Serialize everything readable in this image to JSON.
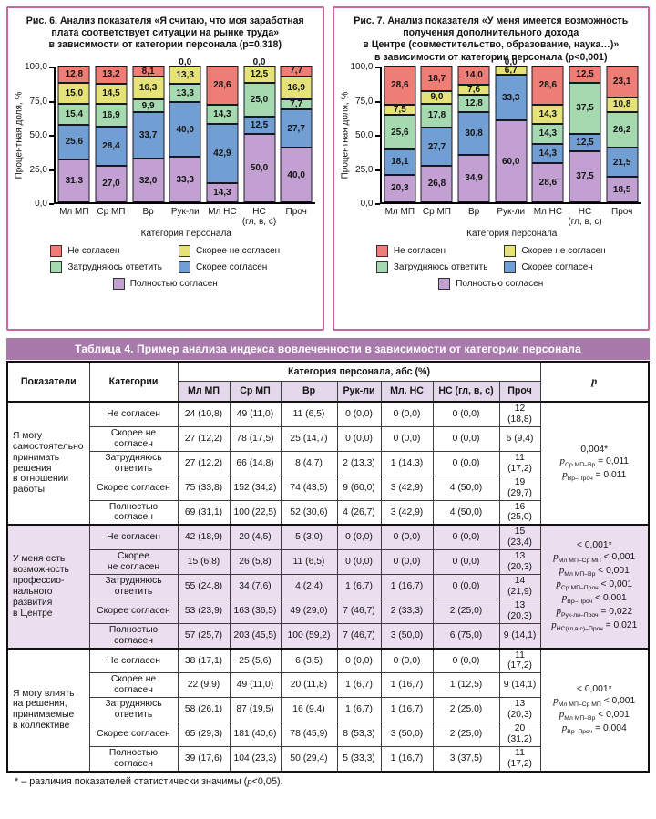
{
  "figures": [
    {
      "title": "Рис. 6. Анализ показателя «Я считаю, что моя заработная\nплата соответствует ситуации на рынке труда»\nв зависимости от категории персонала (p=0,318)",
      "chart_data": {
        "type": "bar",
        "subtype": "stacked-percent",
        "ylabel": "Процентная доля, %",
        "xlabel": "Категория персонала",
        "ylim": [
          0,
          100
        ],
        "yticks": [
          100,
          75,
          50,
          25,
          0
        ],
        "categories": [
          "Мл МП",
          "Ср МП",
          "Вр",
          "Рук-ли",
          "Мл НС",
          "НС\n(гл, в, с)",
          "Проч"
        ],
        "series": [
          {
            "name": "Не согласен",
            "color": "#ee7d75",
            "values": [
              12.8,
              13.2,
              8.1,
              0.0,
              28.6,
              0.0,
              7.7
            ]
          },
          {
            "name": "Скорее не согласен",
            "color": "#e5e277",
            "values": [
              15.0,
              14.5,
              16.3,
              13.3,
              0.0,
              12.5,
              16.9
            ]
          },
          {
            "name": "Затрудняюсь ответить",
            "color": "#a5d9af",
            "values": [
              15.4,
              16.9,
              9.9,
              13.3,
              14.3,
              25.0,
              7.7
            ]
          },
          {
            "name": "Скорее согласен",
            "color": "#719fd4",
            "values": [
              25.6,
              28.4,
              33.7,
              40.0,
              42.9,
              12.5,
              27.7
            ]
          },
          {
            "name": "Полностью согласен",
            "color": "#c2a0d1",
            "values": [
              31.3,
              27.0,
              32.0,
              33.3,
              14.3,
              50.0,
              40.0
            ]
          }
        ],
        "legend_position": "bottom",
        "grid": false
      }
    },
    {
      "title": "Рис. 7. Анализ показателя «У меня имеется возможность\nполучения дополнительного дохода\nв Центре (совместительство, образование, наука…)»\nв зависимости от категории персонала (p<0,001)",
      "chart_data": {
        "type": "bar",
        "subtype": "stacked-percent",
        "ylabel": "Процентная доля, %",
        "xlabel": "Категория персонала",
        "ylim": [
          0,
          100
        ],
        "yticks": [
          100,
          75,
          50,
          25,
          0
        ],
        "categories": [
          "Мл МП",
          "Ср МП",
          "Вр",
          "Рук-ли",
          "Мл НС",
          "НС\n(гл, в, с)",
          "Проч"
        ],
        "series": [
          {
            "name": "Не согласен",
            "color": "#ee7d75",
            "values": [
              28.6,
              18.7,
              14.0,
              0.0,
              28.6,
              12.5,
              23.1
            ]
          },
          {
            "name": "Скорее не согласен",
            "color": "#e5e277",
            "values": [
              7.5,
              9.0,
              7.6,
              6.7,
              14.3,
              0.0,
              10.8
            ]
          },
          {
            "name": "Затрудняюсь ответить",
            "color": "#a5d9af",
            "values": [
              25.6,
              17.8,
              12.8,
              0.0,
              14.3,
              37.5,
              26.2
            ]
          },
          {
            "name": "Скорее согласен",
            "color": "#719fd4",
            "values": [
              18.1,
              27.7,
              30.8,
              33.3,
              14.3,
              12.5,
              21.5
            ]
          },
          {
            "name": "Полностью согласен",
            "color": "#c2a0d1",
            "values": [
              20.3,
              26.8,
              34.9,
              60.0,
              28.6,
              37.5,
              18.5
            ]
          }
        ],
        "legend_position": "bottom",
        "grid": false
      }
    }
  ],
  "table": {
    "title": "Таблица 4. Пример анализа индекса вовлеченности в зависимости от категории персонала",
    "header": {
      "col1": "Показатели",
      "col2": "Категории",
      "group": "Категория персонала, абс (%)",
      "cols": [
        "Мл МП",
        "Ср МП",
        "Вр",
        "Рук-ли",
        "Мл. НС",
        "НС (гл, в, с)",
        "Проч"
      ],
      "p": "p"
    },
    "blocks": [
      {
        "indicator": "Я могу\nсамостоятельно\nпринимать\nрешения\nв отношении\nработы",
        "shaded": false,
        "rows": [
          {
            "category": "Не согласен",
            "values": [
              "24 (10,8)",
              "49 (11,0)",
              "11 (6,5)",
              "0 (0,0)",
              "0 (0,0)",
              "0 (0,0)",
              "12 (18,8)"
            ]
          },
          {
            "category": "Скорее не\nсогласен",
            "values": [
              "27 (12,2)",
              "78 (17,5)",
              "25 (14,7)",
              "0 (0,0)",
              "0 (0,0)",
              "0 (0,0)",
              "6 (9,4)"
            ]
          },
          {
            "category": "Затрудняюсь\nответить",
            "values": [
              "27 (12,2)",
              "66 (14,8)",
              "8 (4,7)",
              "2 (13,3)",
              "1 (14,3)",
              "0 (0,0)",
              "11 (17,2)"
            ]
          },
          {
            "category": "Скорее согласен",
            "values": [
              "75 (33,8)",
              "152 (34,2)",
              "74 (43,5)",
              "9 (60,0)",
              "3 (42,9)",
              "4 (50,0)",
              "19 (29,7)"
            ]
          },
          {
            "category": "Полностью\nсогласен",
            "values": [
              "69 (31,1)",
              "100 (22,5)",
              "52 (30,6)",
              "4 (26,7)",
              "3 (42,9)",
              "4 (50,0)",
              "16 (25,0)"
            ]
          }
        ],
        "p_lines": [
          {
            "main": "0,004*"
          },
          {
            "sub": "Ср МП–Вр",
            "rel": " = 0,011"
          },
          {
            "sub": "Вр–Проч",
            "rel": " = 0,011"
          }
        ]
      },
      {
        "indicator": "У меня есть\nвозможность\nпрофессио-\nнального\nразвития\nв Центре",
        "shaded": true,
        "rows": [
          {
            "category": "Не согласен",
            "values": [
              "42 (18,9)",
              "20 (4,5)",
              "5 (3,0)",
              "0 (0,0)",
              "0 (0,0)",
              "0 (0,0)",
              "15 (23,4)"
            ]
          },
          {
            "category": "Скорее\nне согласен",
            "values": [
              "15 (6,8)",
              "26 (5,8)",
              "11 (6,5)",
              "0 (0,0)",
              "0 (0,0)",
              "0 (0,0)",
              "13 (20,3)"
            ]
          },
          {
            "category": "Затрудняюсь\nответить",
            "values": [
              "55 (24,8)",
              "34 (7,6)",
              "4 (2,4)",
              "1 (6,7)",
              "1 (16,7)",
              "0 (0,0)",
              "14 (21,9)"
            ]
          },
          {
            "category": "Скорее согласен",
            "values": [
              "53 (23,9)",
              "163 (36,5)",
              "49 (29,0)",
              "7 (46,7)",
              "2 (33,3)",
              "2 (25,0)",
              "13 (20,3)"
            ]
          },
          {
            "category": "Полностью\nсогласен",
            "values": [
              "57 (25,7)",
              "203 (45,5)",
              "100 (59,2)",
              "7 (46,7)",
              "3 (50,0)",
              "6 (75,0)",
              "9 (14,1)"
            ]
          }
        ],
        "p_lines": [
          {
            "main": "< 0,001*"
          },
          {
            "sub": "Мл МП–Ср МП",
            "rel": " < 0,001"
          },
          {
            "sub": "Мл МП–Вр",
            "rel": " < 0,001"
          },
          {
            "sub": "Ср МП–Проч",
            "rel": " < 0,001"
          },
          {
            "sub": "Вр–Проч",
            "rel": " < 0,001"
          },
          {
            "sub": "Рук-ли–Проч",
            "rel": " = 0,022"
          },
          {
            "sub": "НС(гл,в,с)–Проч",
            "rel": " = 0,021"
          }
        ]
      },
      {
        "indicator": "Я могу влиять\nна решения,\nпринимаемые\nв коллективе",
        "shaded": false,
        "rows": [
          {
            "category": "Не согласен",
            "values": [
              "38 (17,1)",
              "25 (5,6)",
              "6 (3,5)",
              "0 (0,0)",
              "0 (0,0)",
              "0 (0,0)",
              "11 (17,2)"
            ]
          },
          {
            "category": "Скорее не\nсогласен",
            "values": [
              "22 (9,9)",
              "49 (11,0)",
              "20 (11,8)",
              "1 (6,7)",
              "1 (16,7)",
              "1 (12,5)",
              "9 (14,1)"
            ]
          },
          {
            "category": "Затрудняюсь\nответить",
            "values": [
              "58 (26,1)",
              "87 (19,5)",
              "16 (9,4)",
              "1 (6,7)",
              "1 (16,7)",
              "2 (25,0)",
              "13 (20,3)"
            ]
          },
          {
            "category": "Скорее согласен",
            "values": [
              "65 (29,3)",
              "181 (40,6)",
              "78 (45,9)",
              "8 (53,3)",
              "3 (50,0)",
              "2 (25,0)",
              "20 (31,2)"
            ]
          },
          {
            "category": "Полностью\nсогласен",
            "values": [
              "39 (17,6)",
              "104 (23,3)",
              "50 (29,4)",
              "5 (33,3)",
              "1 (16,7)",
              "3 (37,5)",
              "11 (17,2)"
            ]
          }
        ],
        "p_lines": [
          {
            "main": "< 0,001*"
          },
          {
            "sub": "Мл МП–Ср МП",
            "rel": " < 0,001"
          },
          {
            "sub": "Мл МП–Вр",
            "rel": " < 0,001"
          },
          {
            "sub": "Вр–Проч",
            "rel": " = 0,004"
          }
        ]
      }
    ],
    "footnote": {
      "pre": "* – различия показателей статистически значимы (",
      "p": "p",
      "post": "<0,05)."
    }
  },
  "colors": {
    "panel_border": "#c9679c",
    "table_title_bg": "#a87aac",
    "shaded_row_bg": "#eadeef",
    "subheader_bg": "#e3d8e9"
  }
}
